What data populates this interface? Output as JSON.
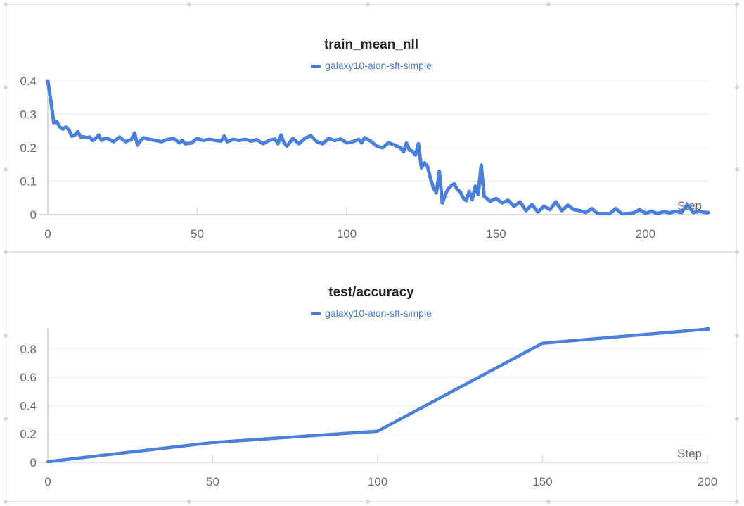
{
  "panels": [
    {
      "title": "train_mean_nll",
      "legend": "galaxy10-aion-sft-simple",
      "x_axis_label": "Step",
      "y_ticks": [
        "0.4",
        "0.3",
        "0.2",
        "0.1",
        "0"
      ],
      "x_ticks": [
        "0",
        "50",
        "100",
        "150",
        "200"
      ]
    },
    {
      "title": "test/accuracy",
      "legend": "galaxy10-aion-sft-simple",
      "x_axis_label": "Step",
      "y_ticks": [
        "0.8",
        "0.6",
        "0.4",
        "0.2",
        "0"
      ],
      "x_ticks": [
        "0",
        "50",
        "100",
        "150",
        "200"
      ]
    }
  ],
  "colors": {
    "series": "#4b7fdc",
    "legend_text": "#4a7bd0"
  },
  "chart_data": [
    {
      "type": "line",
      "title": "train_mean_nll",
      "xlabel": "Step",
      "ylabel": "",
      "xlim": [
        0,
        221
      ],
      "ylim": [
        0,
        0.4
      ],
      "grid": true,
      "legend_position": "top-center",
      "series": [
        {
          "name": "galaxy10-aion-sft-simple",
          "x": [
            0,
            1,
            2,
            3,
            4,
            5,
            6,
            7,
            8,
            9,
            10,
            11,
            12,
            13,
            14,
            15,
            16,
            17,
            18,
            19,
            20,
            22,
            24,
            26,
            28,
            29,
            30,
            31,
            32,
            34,
            36,
            38,
            40,
            42,
            44,
            45,
            46,
            48,
            50,
            52,
            54,
            56,
            58,
            59,
            60,
            62,
            64,
            66,
            68,
            70,
            72,
            74,
            76,
            77,
            78,
            79,
            80,
            82,
            84,
            86,
            88,
            90,
            92,
            94,
            96,
            98,
            100,
            102,
            104,
            105,
            106,
            108,
            110,
            112,
            114,
            116,
            118,
            119,
            120,
            121,
            122,
            123,
            124,
            125,
            126,
            127,
            128,
            129,
            130,
            131,
            132,
            133,
            134,
            135,
            136,
            137,
            138,
            139,
            140,
            141,
            142,
            143,
            144,
            145,
            146,
            148,
            150,
            152,
            154,
            156,
            158,
            160,
            162,
            164,
            166,
            168,
            170,
            172,
            174,
            176,
            178,
            180,
            182,
            184,
            186,
            188,
            190,
            192,
            194,
            196,
            198,
            200,
            202,
            204,
            206,
            208,
            210,
            212,
            214,
            216,
            218,
            220,
            221
          ],
          "values": [
            0.4,
            0.34,
            0.275,
            0.278,
            0.262,
            0.256,
            0.262,
            0.254,
            0.235,
            0.238,
            0.248,
            0.232,
            0.233,
            0.23,
            0.232,
            0.222,
            0.228,
            0.238,
            0.222,
            0.228,
            0.228,
            0.218,
            0.232,
            0.218,
            0.225,
            0.244,
            0.208,
            0.222,
            0.23,
            0.225,
            0.222,
            0.218,
            0.225,
            0.228,
            0.215,
            0.222,
            0.212,
            0.214,
            0.228,
            0.222,
            0.225,
            0.222,
            0.22,
            0.235,
            0.218,
            0.225,
            0.222,
            0.225,
            0.22,
            0.224,
            0.212,
            0.222,
            0.226,
            0.212,
            0.238,
            0.215,
            0.205,
            0.228,
            0.212,
            0.228,
            0.236,
            0.218,
            0.212,
            0.228,
            0.222,
            0.226,
            0.215,
            0.218,
            0.225,
            0.215,
            0.23,
            0.22,
            0.205,
            0.2,
            0.215,
            0.208,
            0.2,
            0.188,
            0.214,
            0.193,
            0.19,
            0.178,
            0.212,
            0.14,
            0.155,
            0.145,
            0.11,
            0.08,
            0.065,
            0.13,
            0.035,
            0.06,
            0.078,
            0.086,
            0.092,
            0.075,
            0.068,
            0.05,
            0.042,
            0.07,
            0.045,
            0.085,
            0.06,
            0.148,
            0.055,
            0.04,
            0.048,
            0.035,
            0.043,
            0.025,
            0.038,
            0.012,
            0.03,
            0.008,
            0.025,
            0.015,
            0.038,
            0.012,
            0.028,
            0.015,
            0.012,
            0.006,
            0.018,
            0.003,
            0.003,
            0.003,
            0.018,
            0.003,
            0.003,
            0.005,
            0.015,
            0.004,
            0.01,
            0.003,
            0.009,
            0.005,
            0.01,
            0.006,
            0.03,
            0.006,
            0.01,
            0.006,
            0.006
          ]
        }
      ]
    },
    {
      "type": "line",
      "title": "test/accuracy",
      "xlabel": "Step",
      "ylabel": "",
      "xlim": [
        0,
        200
      ],
      "ylim": [
        0,
        0.94
      ],
      "grid": true,
      "legend_position": "top-center",
      "series": [
        {
          "name": "galaxy10-aion-sft-simple",
          "x": [
            0,
            50,
            100,
            150,
            200
          ],
          "values": [
            0.005,
            0.14,
            0.22,
            0.84,
            0.94
          ]
        }
      ]
    }
  ]
}
